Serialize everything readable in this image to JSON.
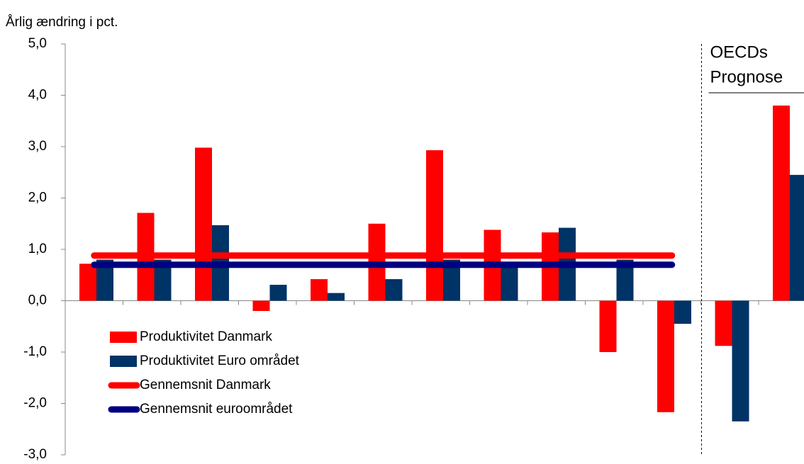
{
  "chart_data": {
    "type": "bar",
    "subtitle": "Årlig ændring i pct.",
    "categories": [
      null,
      null,
      null,
      null,
      null,
      null,
      null,
      null,
      null,
      null,
      null,
      null,
      null
    ],
    "series": [
      {
        "name": "Produktivitet Danmark",
        "color": "#ff0000",
        "values": [
          0.72,
          1.71,
          2.98,
          -0.2,
          0.42,
          1.5,
          2.93,
          1.38,
          1.33,
          -1.0,
          -2.17,
          -0.88,
          3.8
        ]
      },
      {
        "name": "Produktivitet Euro området",
        "color": "#003366",
        "values": [
          0.8,
          0.8,
          1.47,
          0.31,
          0.15,
          0.42,
          0.8,
          0.75,
          1.42,
          0.8,
          -0.45,
          -2.35,
          2.45
        ]
      },
      {
        "name": "Gennemsnit Danmark",
        "type": "line",
        "color": "#ff0000",
        "values": [
          0.88,
          0.88,
          0.88,
          0.88,
          0.88,
          0.88,
          0.88,
          0.88,
          0.88,
          0.88,
          0.88,
          null,
          null
        ]
      },
      {
        "name": "Gennemsnit euroområdet",
        "type": "line",
        "color": "#000080",
        "values": [
          0.7,
          0.7,
          0.7,
          0.7,
          0.7,
          0.7,
          0.7,
          0.7,
          0.7,
          0.7,
          0.7,
          null,
          null
        ]
      }
    ],
    "annotation": [
      "OECDs",
      "Prognose"
    ],
    "ylim": [
      -3,
      5
    ],
    "yticks": [
      {
        "value": -3,
        "label": "-3,0"
      },
      {
        "value": -2,
        "label": "-2,0"
      },
      {
        "value": -1,
        "label": "-1,0"
      },
      {
        "value": 0,
        "label": "0,0"
      },
      {
        "value": 1,
        "label": "1,0"
      },
      {
        "value": 2,
        "label": "2,0"
      },
      {
        "value": 3,
        "label": "3,0"
      },
      {
        "value": 4,
        "label": "4,0"
      },
      {
        "value": 5,
        "label": "5,0"
      }
    ],
    "legend": "lower left"
  }
}
